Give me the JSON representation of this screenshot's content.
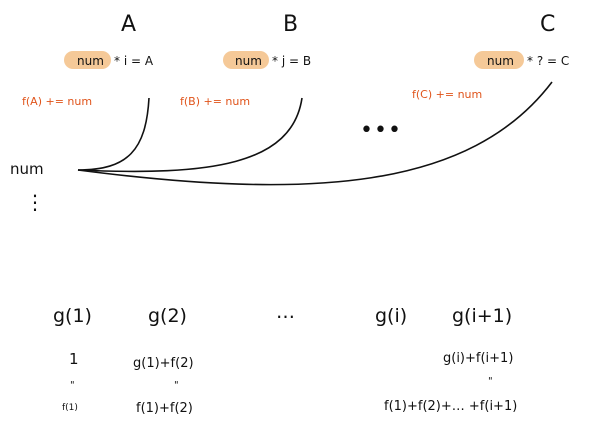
{
  "top": {
    "labels": {
      "a": "A",
      "b": "B",
      "c": "C"
    },
    "equations": {
      "a": {
        "num": "num",
        "rest": "* i = A"
      },
      "b": {
        "num": "num",
        "rest": "* j = B"
      },
      "c": {
        "num": "num",
        "rest": "* ? = C"
      }
    },
    "updates": {
      "a": "f(A) += num",
      "b": "f(B) += num",
      "c": "f(C) += num"
    },
    "ellipsis": "•••"
  },
  "left": {
    "num": "num",
    "vdots": "⋮"
  },
  "bottom": {
    "g_labels": [
      "g(1)",
      "g(2)",
      "…",
      "g(i)",
      "g(i+1)"
    ],
    "g1_value": "1",
    "g1_quote": "\"",
    "g1_f": "f(1)",
    "g2_expr": "g(1)+f(2)",
    "g2_quote": "\"",
    "g2_sum": "f(1)+f(2)",
    "gi_expr": "g(i)+f(i+1)",
    "gi_quote": "\"",
    "gi_sum": "f(1)+f(2)+… +f(i+1)"
  },
  "colors": {
    "highlight": "#f3bf86",
    "update_text": "#e0541b",
    "ink": "#111111"
  }
}
